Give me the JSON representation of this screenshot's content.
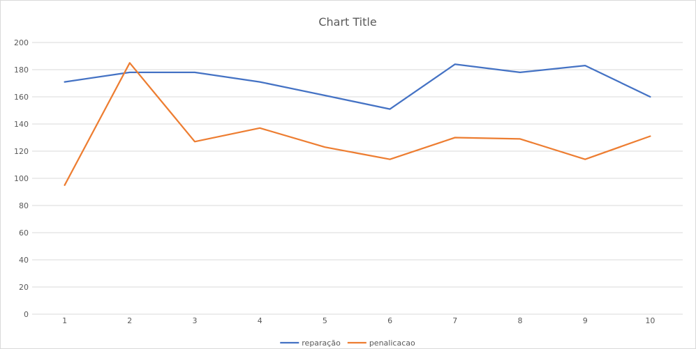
{
  "chart_data": {
    "type": "line",
    "title": "Chart Title",
    "categories": [
      "1",
      "2",
      "3",
      "4",
      "5",
      "6",
      "7",
      "8",
      "9",
      "10"
    ],
    "y_ticks": [
      "0",
      "20",
      "40",
      "60",
      "80",
      "100",
      "120",
      "140",
      "160",
      "180",
      "200"
    ],
    "ylim": [
      0,
      200
    ],
    "grid": true,
    "legend_position": "bottom",
    "series": [
      {
        "name": "reparação",
        "color": "#4472C4",
        "values": [
          171,
          178,
          178,
          171,
          161,
          151,
          184,
          178,
          183,
          160
        ]
      },
      {
        "name": "penalicacao",
        "color": "#ED7D31",
        "values": [
          95,
          185,
          127,
          137,
          123,
          114,
          130,
          129,
          114,
          131
        ]
      }
    ]
  }
}
